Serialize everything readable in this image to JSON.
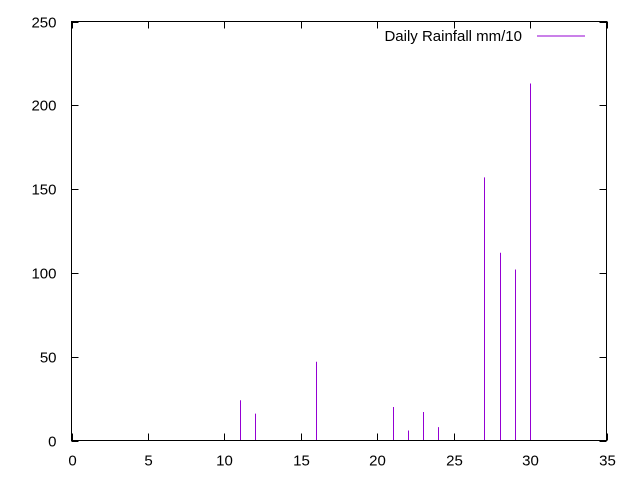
{
  "chart_data": {
    "type": "bar",
    "style": "impulses",
    "title": "",
    "xlabel": "",
    "ylabel": "",
    "xlim": [
      0,
      35
    ],
    "ylim": [
      0,
      250
    ],
    "x_ticks": [
      0,
      5,
      10,
      15,
      20,
      25,
      30,
      35
    ],
    "y_ticks": [
      0,
      50,
      100,
      150,
      200,
      250
    ],
    "grid": false,
    "legend_position": "top-right",
    "series": [
      {
        "name": "Daily Rainfall mm/10",
        "color": "#9400d3",
        "points": [
          {
            "x": 11,
            "y": 24
          },
          {
            "x": 12,
            "y": 16
          },
          {
            "x": 16,
            "y": 47
          },
          {
            "x": 21,
            "y": 20
          },
          {
            "x": 22,
            "y": 6
          },
          {
            "x": 23,
            "y": 17
          },
          {
            "x": 24,
            "y": 8
          },
          {
            "x": 27,
            "y": 157
          },
          {
            "x": 28,
            "y": 112
          },
          {
            "x": 29,
            "y": 102
          },
          {
            "x": 30,
            "y": 213
          }
        ]
      }
    ]
  }
}
